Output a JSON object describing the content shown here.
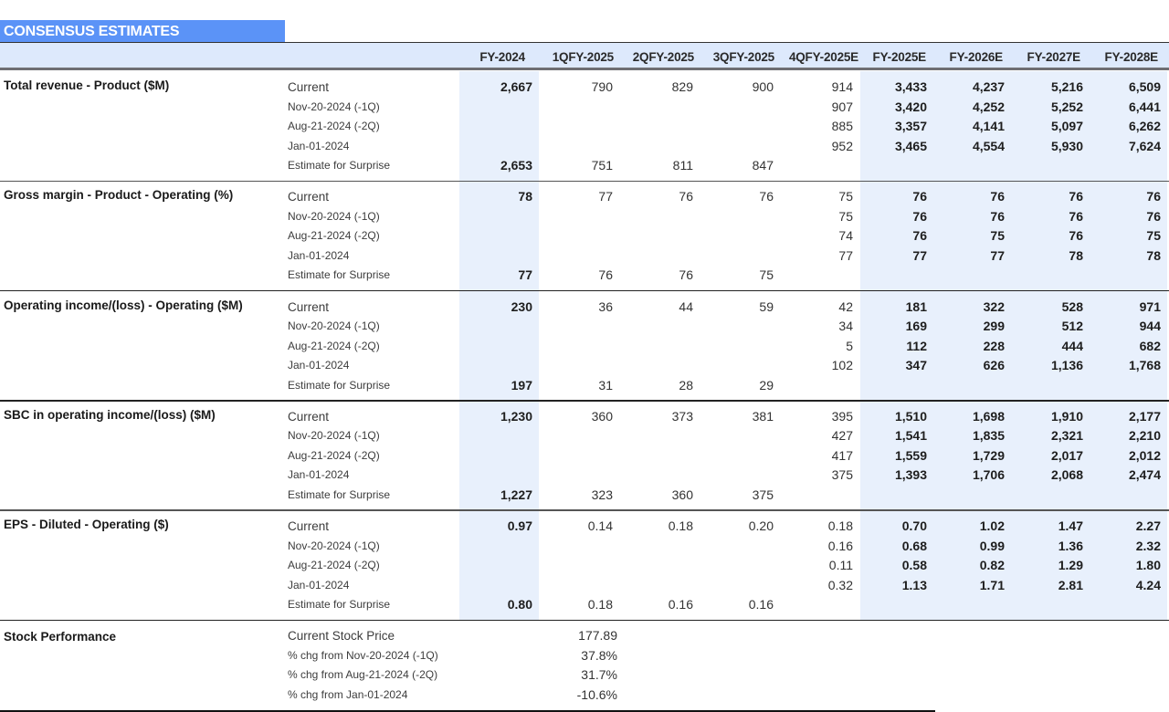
{
  "title": "CONSENSUS ESTIMATES",
  "columns": [
    "FY-2024",
    "1QFY-2025",
    "2QFY-2025",
    "3QFY-2025",
    "4QFY-2025E",
    "FY-2025E",
    "FY-2026E",
    "FY-2027E",
    "FY-2028E"
  ],
  "row_labels": [
    "Current",
    "Nov-20-2024 (-1Q)",
    "Aug-21-2024 (-2Q)",
    "Jan-01-2024",
    "Estimate for Surprise"
  ],
  "sections": [
    {
      "label": "Total revenue - Product ($M)",
      "rows": [
        [
          "2,667",
          "790",
          "829",
          "900",
          "914",
          "3,433",
          "4,237",
          "5,216",
          "6,509"
        ],
        [
          "",
          "",
          "",
          "",
          "907",
          "3,420",
          "4,252",
          "5,252",
          "6,441"
        ],
        [
          "",
          "",
          "",
          "",
          "885",
          "3,357",
          "4,141",
          "5,097",
          "6,262"
        ],
        [
          "",
          "",
          "",
          "",
          "952",
          "3,465",
          "4,554",
          "5,930",
          "7,624"
        ],
        [
          "2,653",
          "751",
          "811",
          "847",
          "",
          "",
          "",
          "",
          ""
        ]
      ]
    },
    {
      "label": "Gross margin - Product - Operating (%)",
      "rows": [
        [
          "78",
          "77",
          "76",
          "76",
          "75",
          "76",
          "76",
          "76",
          "76"
        ],
        [
          "",
          "",
          "",
          "",
          "75",
          "76",
          "76",
          "76",
          "76"
        ],
        [
          "",
          "",
          "",
          "",
          "74",
          "76",
          "75",
          "76",
          "75"
        ],
        [
          "",
          "",
          "",
          "",
          "77",
          "77",
          "77",
          "78",
          "78"
        ],
        [
          "77",
          "76",
          "76",
          "75",
          "",
          "",
          "",
          "",
          ""
        ]
      ]
    },
    {
      "label": "Operating income/(loss) - Operating ($M)",
      "rows": [
        [
          "230",
          "36",
          "44",
          "59",
          "42",
          "181",
          "322",
          "528",
          "971"
        ],
        [
          "",
          "",
          "",
          "",
          "34",
          "169",
          "299",
          "512",
          "944"
        ],
        [
          "",
          "",
          "",
          "",
          "5",
          "112",
          "228",
          "444",
          "682"
        ],
        [
          "",
          "",
          "",
          "",
          "102",
          "347",
          "626",
          "1,136",
          "1,768"
        ],
        [
          "197",
          "31",
          "28",
          "29",
          "",
          "",
          "",
          "",
          ""
        ]
      ]
    },
    {
      "label": "SBC in operating income/(loss) ($M)",
      "rows": [
        [
          "1,230",
          "360",
          "373",
          "381",
          "395",
          "1,510",
          "1,698",
          "1,910",
          "2,177"
        ],
        [
          "",
          "",
          "",
          "",
          "427",
          "1,541",
          "1,835",
          "2,321",
          "2,210"
        ],
        [
          "",
          "",
          "",
          "",
          "417",
          "1,559",
          "1,729",
          "2,017",
          "2,012"
        ],
        [
          "",
          "",
          "",
          "",
          "375",
          "1,393",
          "1,706",
          "2,068",
          "2,474"
        ],
        [
          "1,227",
          "323",
          "360",
          "375",
          "",
          "",
          "",
          "",
          ""
        ]
      ]
    },
    {
      "label": "EPS - Diluted - Operating ($)",
      "rows": [
        [
          "0.97",
          "0.14",
          "0.18",
          "0.20",
          "0.18",
          "0.70",
          "1.02",
          "1.47",
          "2.27"
        ],
        [
          "",
          "",
          "",
          "",
          "0.16",
          "0.68",
          "0.99",
          "1.36",
          "2.32"
        ],
        [
          "",
          "",
          "",
          "",
          "0.11",
          "0.58",
          "0.82",
          "1.29",
          "1.80"
        ],
        [
          "",
          "",
          "",
          "",
          "0.32",
          "1.13",
          "1.71",
          "2.81",
          "4.24"
        ],
        [
          "0.80",
          "0.18",
          "0.16",
          "0.16",
          "",
          "",
          "",
          "",
          ""
        ]
      ]
    }
  ],
  "stock_performance": {
    "label": "Stock Performance",
    "rows": [
      {
        "label": "Current Stock Price",
        "value": "177.89"
      },
      {
        "label": "% chg from Nov-20-2024 (-1Q)",
        "value": "37.8%"
      },
      {
        "label": "% chg from Aug-21-2024 (-2Q)",
        "value": "31.7%"
      },
      {
        "label": "% chg from Jan-01-2024",
        "value": "-10.6%"
      }
    ]
  },
  "colors": {
    "title_bg": "#5b93f7",
    "header_bg": "#dde9fc",
    "shade_bg": "#e8f0fc"
  }
}
